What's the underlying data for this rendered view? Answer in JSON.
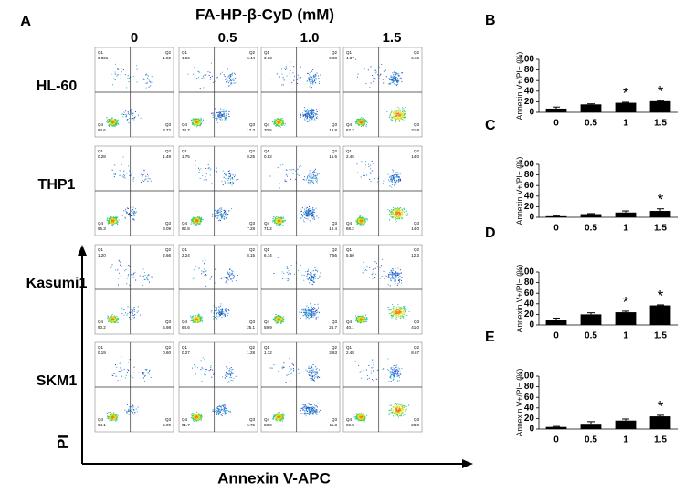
{
  "panel_a": {
    "label": "A",
    "title": "FA-HP-β-CyD (mM)",
    "concentrations": [
      "0",
      "0.5",
      "1.0",
      "1.5"
    ],
    "cell_lines": [
      "HL-60",
      "THP1",
      "Kasumi1",
      "SKM1"
    ],
    "y_axis": "PI",
    "x_axis": "Annexin V-APC",
    "quadrant_names": [
      "Q1",
      "Q2",
      "Q3",
      "Q4"
    ],
    "plots": [
      [
        {
          "Q1": "0.021",
          "Q2": "1.92",
          "Q3": "3.72",
          "Q4": "94.6"
        },
        {
          "Q1": "1.56",
          "Q2": "6.44",
          "Q3": "17.3",
          "Q4": "74.7"
        },
        {
          "Q1": "3.63",
          "Q2": "6.08",
          "Q3": "19.8",
          "Q4": "70.5"
        },
        {
          "Q1": "4.37",
          "Q2": "6.66",
          "Q3": "21.8",
          "Q4": "67.2"
        }
      ],
      [
        {
          "Q1": "0.28",
          "Q2": "1.49",
          "Q3": "3.09",
          "Q4": "95.3"
        },
        {
          "Q1": "1.75",
          "Q2": "8.25",
          "Q3": "7.28",
          "Q4": "82.8"
        },
        {
          "Q1": "0.82",
          "Q2": "15.6",
          "Q3": "12.4",
          "Q4": "71.2"
        },
        {
          "Q1": "2.45",
          "Q2": "14.0",
          "Q3": "14.0",
          "Q4": "68.2"
        }
      ],
      [
        {
          "Q1": "1.20",
          "Q2": "2.66",
          "Q3": "5.98",
          "Q4": "90.2"
        },
        {
          "Q1": "2.24",
          "Q2": "8.15",
          "Q3": "25.1",
          "Q4": "64.6"
        },
        {
          "Q1": "6.74",
          "Q2": "7.56",
          "Q3": "25.7",
          "Q4": "59.9"
        },
        {
          "Q1": "5.50",
          "Q2": "12.3",
          "Q3": "41.0",
          "Q4": "40.1"
        }
      ],
      [
        {
          "Q1": "0.19",
          "Q2": "0.60",
          "Q3": "5.09",
          "Q4": "94.1"
        },
        {
          "Q1": "0.27",
          "Q2": "1.28",
          "Q3": "6.75",
          "Q4": "91.7"
        },
        {
          "Q1": "1.12",
          "Q2": "3.63",
          "Q3": "11.3",
          "Q4": "83.9"
        },
        {
          "Q1": "2.48",
          "Q2": "8.67",
          "Q3": "28.0",
          "Q4": "60.8"
        }
      ]
    ]
  },
  "chart_data": [
    {
      "type": "bar",
      "label": "B",
      "ylabel": "Annexin V+/PI− (%)",
      "categories": [
        "0",
        "0.5",
        "1",
        "1.5"
      ],
      "values": [
        7,
        15,
        18,
        21
      ],
      "errors": [
        3,
        1,
        1,
        1
      ],
      "significance": [
        null,
        null,
        "*",
        "*"
      ],
      "color": "#000000",
      "ylim": [
        0,
        100
      ],
      "yticks": [
        0,
        20,
        40,
        60,
        80,
        100
      ]
    },
    {
      "type": "bar",
      "label": "C",
      "ylabel": "Annexin V+/PI− (%)",
      "categories": [
        "0",
        "0.5",
        "1",
        "1.5"
      ],
      "values": [
        2,
        6,
        9,
        12
      ],
      "errors": [
        1,
        1,
        3,
        4
      ],
      "significance": [
        null,
        null,
        null,
        "*"
      ],
      "color": "#000000",
      "ylim": [
        0,
        100
      ],
      "yticks": [
        0,
        20,
        40,
        60,
        80,
        100
      ]
    },
    {
      "type": "bar",
      "label": "D",
      "ylabel": "Annexin V+/PI− (%)",
      "categories": [
        "0",
        "0.5",
        "1",
        "1.5"
      ],
      "values": [
        9,
        20,
        24,
        37
      ],
      "errors": [
        4,
        3,
        2,
        1
      ],
      "significance": [
        null,
        null,
        "*",
        "*"
      ],
      "color": "#000000",
      "ylim": [
        0,
        100
      ],
      "yticks": [
        0,
        20,
        40,
        60,
        80,
        100
      ]
    },
    {
      "type": "bar",
      "label": "E",
      "ylabel": "Annexin V+/PI− (%)",
      "categories": [
        "0",
        "0.5",
        "1",
        "1.5"
      ],
      "values": [
        4,
        10,
        16,
        24
      ],
      "errors": [
        1,
        4,
        3,
        2
      ],
      "significance": [
        null,
        null,
        null,
        "*"
      ],
      "color": "#000000",
      "ylim": [
        0,
        100
      ],
      "yticks": [
        0,
        20,
        40,
        60,
        80,
        100
      ]
    }
  ]
}
